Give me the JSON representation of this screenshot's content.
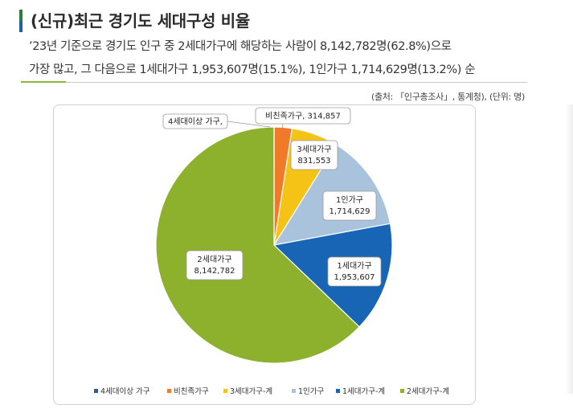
{
  "header": {
    "title": "(신규)최근 경기도 세대구성 비율",
    "desc_line1": "’23년 기준으로 경기도 인구 중 2세대가구에 해당하는 사람이 8,142,782명(62.8%)으로",
    "desc_line2": "가장 많고, 그 다음으로 1세대가구 1,953,607명(15.1%), 1인가구 1,714,629명(13.2%) 순",
    "source": "(출처: 「인구총조사」, 통계청), (단위: 명)"
  },
  "chart_data": {
    "type": "pie",
    "slices": [
      {
        "legend": "4세대이상 가구",
        "label_name": "4세대이상 가구,",
        "label_value": "",
        "value": 2000,
        "color": "#1f5ea8"
      },
      {
        "legend": "비친족가구",
        "label_name": "비친족가구,",
        "label_value": "314,857",
        "value": 314857,
        "color": "#f07a2a"
      },
      {
        "legend": "3세대가구-계",
        "label_name": "3세대가구",
        "label_value": "831,553",
        "value": 831553,
        "color": "#f5c316"
      },
      {
        "legend": "1인가구",
        "label_name": "1인가구",
        "label_value": "1,714,629",
        "value": 1714629,
        "color": "#a8c3db"
      },
      {
        "legend": "1세대가구-계",
        "label_name": "1세대가구",
        "label_value": "1,953,607",
        "value": 1953607,
        "color": "#1765b4"
      },
      {
        "legend": "2세대가구-계",
        "label_name": "2세대가구",
        "label_value": "8,142,782",
        "value": 8142782,
        "color": "#8db12d"
      }
    ],
    "legend_position": "bottom"
  }
}
